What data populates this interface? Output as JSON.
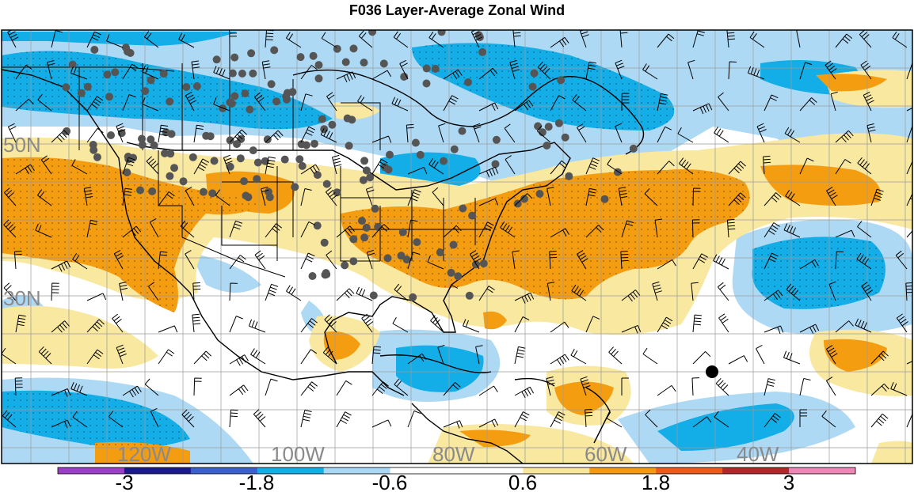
{
  "title": "F036 Layer-Average Zonal Wind",
  "map": {
    "lat_labels": [
      "50N",
      "30N"
    ],
    "lon_labels": [
      "120W",
      "100W",
      "80W",
      "60W",
      "40W"
    ]
  },
  "colorbar": {
    "ticks": [
      "-3",
      "-1.8",
      "-0.6",
      "0.6",
      "1.8",
      "3"
    ],
    "colors": [
      "#9b3fc6",
      "#1a1a8c",
      "#3a5fcf",
      "#12aee6",
      "#aad8f4",
      "#ffffff",
      "#ffffff",
      "#f8e79a",
      "#f39a12",
      "#ee5a1c",
      "#b2282a",
      "#ee86b6"
    ]
  },
  "palette": {
    "light_blue": "#aed9f5",
    "blue": "#13aee7",
    "light_yellow": "#f9e8a0",
    "orange": "#f59d10",
    "station": "#555555"
  }
}
